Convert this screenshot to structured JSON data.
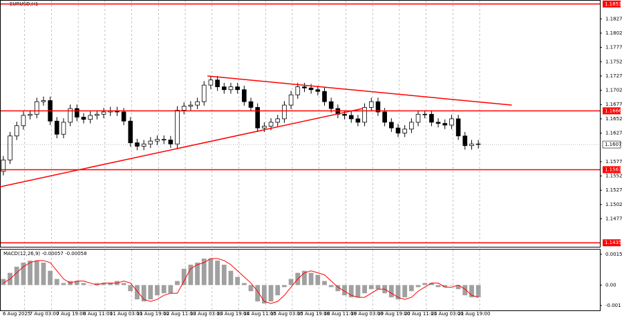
{
  "chart_data": [
    {
      "type": "candlestick",
      "title": "EURUSD,H1",
      "categories": [
        "6 Aug 2025",
        null,
        null,
        null,
        "7 Aug 03:00",
        null,
        null,
        null,
        "7 Aug 19:00",
        null,
        null,
        null,
        "8 Aug 11:00",
        null,
        null,
        null,
        "11 Aug 03:00",
        null,
        null,
        null,
        "11 Aug 19:00",
        null,
        null,
        null,
        "12 Aug 11:00",
        null,
        null,
        null,
        "13 Aug 03:00",
        null,
        null,
        null,
        "13 Aug 19:00",
        null,
        null,
        null,
        "14 Aug 11:00",
        null,
        null,
        null,
        "15 Aug 03:00",
        null,
        null,
        null,
        "15 Aug 19:00",
        null,
        null,
        null,
        "18 Aug 11:00",
        null,
        null,
        null,
        "19 Aug 03:00",
        null,
        null,
        null,
        "19 Aug 19:00",
        null,
        null,
        null,
        "20 Aug 11:00",
        null,
        null,
        null,
        "21 Aug 03:00",
        null,
        null,
        null,
        "21 Aug 19:00",
        null,
        null,
        null
      ],
      "open": [
        1.156,
        1.158,
        1.1622,
        1.164,
        1.1658,
        1.166,
        1.1682,
        1.1684,
        1.1648,
        1.1625,
        1.1646,
        1.167,
        1.1655,
        1.1651,
        1.1658,
        1.166,
        1.1664,
        1.1666,
        1.1664,
        1.1648,
        1.161,
        1.1604,
        1.1608,
        1.1613,
        1.1616,
        1.1615,
        1.1608,
        1.1667,
        1.1674,
        1.1676,
        1.1682,
        1.1711,
        1.172,
        1.1708,
        1.1703,
        1.1708,
        1.1703,
        1.1682,
        1.1672,
        1.1636,
        1.1639,
        1.1646,
        1.1652,
        1.1676,
        1.1694,
        1.1708,
        1.1706,
        1.1703,
        1.17,
        1.1682,
        1.167,
        1.166,
        1.1658,
        1.1652,
        1.1646,
        1.1672,
        1.1682,
        1.1664,
        1.1646,
        1.1636,
        1.1627,
        1.1634,
        1.1646,
        1.166,
        1.166,
        1.1646,
        1.1644,
        1.1641,
        1.1652,
        1.1622,
        1.1605,
        1.1608
      ],
      "high": [
        1.1587,
        1.1629,
        1.1647,
        1.1665,
        1.1667,
        1.1689,
        1.1691,
        1.1691,
        1.1655,
        1.1653,
        1.1677,
        1.1677,
        1.1662,
        1.1665,
        1.1667,
        1.1671,
        1.1673,
        1.1673,
        1.1671,
        1.1655,
        1.1617,
        1.1615,
        1.162,
        1.1623,
        1.1623,
        1.1622,
        1.1674,
        1.1681,
        1.1683,
        1.1689,
        1.1718,
        1.1727,
        1.1727,
        1.1715,
        1.1715,
        1.1715,
        1.171,
        1.1689,
        1.1679,
        1.1646,
        1.1653,
        1.1659,
        1.1683,
        1.1701,
        1.1715,
        1.1715,
        1.1713,
        1.171,
        1.1707,
        1.1689,
        1.1677,
        1.1667,
        1.1665,
        1.1659,
        1.1679,
        1.1689,
        1.1689,
        1.1671,
        1.1653,
        1.1643,
        1.1641,
        1.1653,
        1.1667,
        1.1667,
        1.1667,
        1.1653,
        1.1651,
        1.1659,
        1.1659,
        1.1629,
        1.1615,
        1.1615
      ],
      "low": [
        1.1553,
        1.1573,
        1.1615,
        1.1633,
        1.1651,
        1.1653,
        1.1675,
        1.1641,
        1.1618,
        1.1618,
        1.1639,
        1.1648,
        1.1644,
        1.1644,
        1.1651,
        1.1653,
        1.1657,
        1.1657,
        1.1641,
        1.1603,
        1.1597,
        1.1597,
        1.1601,
        1.1606,
        1.1608,
        1.1601,
        1.1601,
        1.166,
        1.1667,
        1.1669,
        1.1675,
        1.1704,
        1.1701,
        1.1696,
        1.1696,
        1.1696,
        1.1675,
        1.1665,
        1.1629,
        1.1629,
        1.1632,
        1.1639,
        1.1645,
        1.1669,
        1.1687,
        1.1699,
        1.1696,
        1.1693,
        1.1675,
        1.1663,
        1.1653,
        1.1651,
        1.1645,
        1.1639,
        1.1639,
        1.1665,
        1.1657,
        1.1639,
        1.1629,
        1.162,
        1.162,
        1.1627,
        1.1639,
        1.1653,
        1.1639,
        1.1637,
        1.1634,
        1.1634,
        1.1615,
        1.1598,
        1.1598,
        1.16
      ],
      "close": [
        1.158,
        1.1622,
        1.164,
        1.1658,
        1.166,
        1.1682,
        1.1684,
        1.1648,
        1.1625,
        1.1646,
        1.167,
        1.1655,
        1.1651,
        1.1658,
        1.166,
        1.1664,
        1.1666,
        1.1664,
        1.1648,
        1.161,
        1.1604,
        1.1608,
        1.1613,
        1.1616,
        1.1615,
        1.1608,
        1.1667,
        1.1674,
        1.1676,
        1.1682,
        1.1711,
        1.172,
        1.1708,
        1.1703,
        1.1708,
        1.1703,
        1.1682,
        1.1672,
        1.1636,
        1.1639,
        1.1646,
        1.1652,
        1.1676,
        1.1694,
        1.1708,
        1.1706,
        1.1703,
        1.17,
        1.1682,
        1.167,
        1.166,
        1.1658,
        1.1652,
        1.1646,
        1.1672,
        1.1682,
        1.1664,
        1.1646,
        1.1636,
        1.1627,
        1.1634,
        1.1646,
        1.166,
        1.166,
        1.1646,
        1.1644,
        1.1641,
        1.1652,
        1.1622,
        1.1605,
        1.1608,
        1.1607
      ],
      "ylim": [
        1.1428,
        1.186
      ],
      "yticks": [
        1.1827,
        1.1802,
        1.1777,
        1.1752,
        1.1727,
        1.1702,
        1.1677,
        1.1652,
        1.1627,
        1.1577,
        1.1552,
        1.1527,
        1.1502,
        1.1477
      ],
      "levels": [
        1.1853,
        1.1666,
        1.1563,
        1.1435
      ],
      "level_color": "#ff0000",
      "current_price": 1.1607,
      "trendlines": [
        {
          "x": [
            30.5,
            76
          ],
          "y": [
            1.1727,
            1.1676
          ]
        },
        {
          "x": [
            -0.5,
            53.7
          ],
          "y": [
            1.1533,
            1.167
          ]
        }
      ],
      "up_color": "#ffffff",
      "down_color": "#000000"
    },
    {
      "type": "macd",
      "title": "MACD(12,26,9) -0.00057 -0.00058",
      "values": [
        0.0003,
        0.0006,
        0.0009,
        0.0011,
        0.0012,
        0.0012,
        0.0011,
        0.0007,
        0.0003,
        0.0001,
        0.0002,
        0.0002,
        0.0001,
        0,
        0.0001,
        0.0001,
        0.0001,
        0.0002,
        0.0001,
        -0.0003,
        -0.0007,
        -0.0008,
        -0.0007,
        -0.0005,
        -0.0004,
        -0.0004,
        0.0002,
        0.0008,
        0.001,
        0.0011,
        0.0013,
        0.0013,
        0.0012,
        0.001,
        0.0007,
        0.0004,
        0.0001,
        -0.0003,
        -0.0008,
        -0.0009,
        -0.0008,
        -0.0005,
        -0.0001,
        0.0003,
        0.0006,
        0.0007,
        0.0006,
        0.0005,
        0.0002,
        -0.0001,
        -0.0003,
        -0.0005,
        -0.0006,
        -0.0006,
        -0.0004,
        -0.0002,
        -0.0002,
        -0.0004,
        -0.0006,
        -0.0007,
        -0.0006,
        -0.0003,
        -0.0001,
        0.0001,
        0.0001,
        -0.0001,
        -0.0001,
        0,
        -0.0002,
        -0.0005,
        -0.0006,
        -0.0006
      ],
      "signal": [
        0.0001,
        0.0003,
        0.0006,
        0.0009,
        0.0011,
        0.0012,
        0.0012,
        0.0011,
        0.0007,
        0.0003,
        0.0001,
        0.0002,
        0.0002,
        0.0001,
        0,
        0.0001,
        0.0001,
        0.0001,
        0.0002,
        0.0001,
        -0.0003,
        -0.0007,
        -0.0008,
        -0.0007,
        -0.0005,
        -0.0004,
        -0.0004,
        0.0002,
        0.0008,
        0.001,
        0.0011,
        0.0013,
        0.0013,
        0.0012,
        0.001,
        0.0007,
        0.0004,
        0.0001,
        -0.0003,
        -0.0008,
        -0.0009,
        -0.0008,
        -0.0005,
        -0.0001,
        0.0003,
        0.0006,
        0.0007,
        0.0006,
        0.0005,
        0.0002,
        -0.0001,
        -0.0003,
        -0.0005,
        -0.0006,
        -0.0006,
        -0.0004,
        -0.0002,
        -0.0002,
        -0.0004,
        -0.0006,
        -0.0007,
        -0.0006,
        -0.0003,
        -0.0001,
        0.0001,
        0.0001,
        -0.0001,
        -0.0001,
        0,
        -0.0002,
        -0.0005,
        -0.0006
      ],
      "ylim": [
        -0.00124,
        0.00174
      ],
      "yticks": [
        0.00151,
        {
          "value": 0,
          "label": "0.00"
        },
        -0.001
      ],
      "hist_color": "#a0a0a0",
      "signal_color": "#ff0000"
    }
  ]
}
